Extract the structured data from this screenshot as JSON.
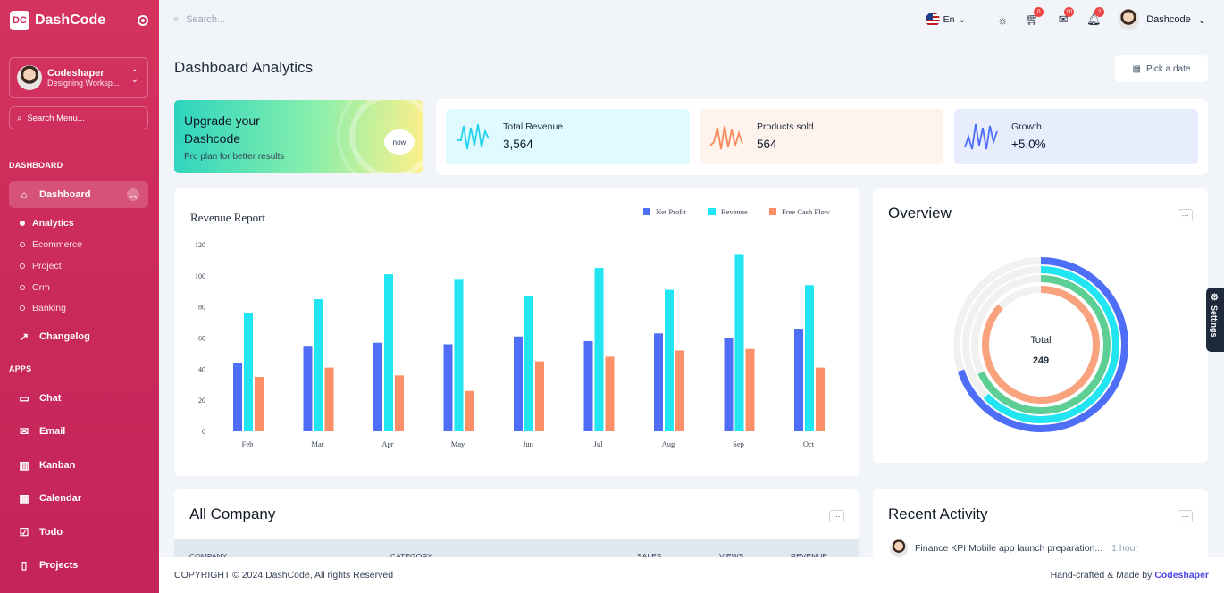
{
  "brand": {
    "logo_text": "DC",
    "name": "DashCode"
  },
  "sidebar": {
    "user": {
      "name": "Codeshaper",
      "workspace": "Designing Worksp..."
    },
    "search_label": "Search Menu...",
    "section_dashboard": "DASHBOARD",
    "dashboard_label": "Dashboard",
    "sub_items": [
      "Analytics",
      "Ecommerce",
      "Project",
      "Crm",
      "Banking"
    ],
    "changelog_label": "Changelog",
    "section_apps": "APPS",
    "apps": [
      {
        "label": "Chat",
        "icon": "chat-icon"
      },
      {
        "label": "Email",
        "icon": "email-icon"
      },
      {
        "label": "Kanban",
        "icon": "kanban-icon"
      },
      {
        "label": "Calendar",
        "icon": "calendar-icon"
      },
      {
        "label": "Todo",
        "icon": "todo-icon"
      },
      {
        "label": "Projects",
        "icon": "projects-icon"
      }
    ]
  },
  "topbar": {
    "search_placeholder": "Search...",
    "language": "En",
    "cart_badge": "0",
    "mail_badge": "10",
    "notify_badge": "2",
    "user_name": "Dashcode"
  },
  "page": {
    "title": "Dashboard Analytics",
    "date_button": "Pick a date"
  },
  "upgrade": {
    "heading": "Upgrade your Dashcode",
    "sub": "Pro plan for better results",
    "pill": "now"
  },
  "stats": [
    {
      "label": "Total Revenue",
      "value": "3,564",
      "color": "#22d3ee",
      "bg": "#e0fbff"
    },
    {
      "label": "Products sold",
      "value": "564",
      "color": "#fb8a5c",
      "bg": "#fff3ee"
    },
    {
      "label": "Growth",
      "value": "+5.0%",
      "color": "#4f6ef7",
      "bg": "#e8edfd"
    }
  ],
  "revenue_report": {
    "title": "Revenue Report"
  },
  "chart_data": {
    "type": "bar",
    "categories": [
      "Feb",
      "Mar",
      "Apr",
      "May",
      "Jun",
      "Jul",
      "Aug",
      "Sep",
      "Oct"
    ],
    "series": [
      {
        "name": "Net Profit",
        "color": "#4f6ef7",
        "values": [
          44,
          55,
          57,
          56,
          61,
          58,
          63,
          60,
          66
        ]
      },
      {
        "name": "Revenue",
        "color": "#22e5f2",
        "values": [
          76,
          85,
          101,
          98,
          87,
          105,
          91,
          114,
          94
        ]
      },
      {
        "name": "Free Cash Flow",
        "color": "#fb8f67",
        "values": [
          35,
          41,
          36,
          26,
          45,
          48,
          52,
          53,
          41
        ]
      }
    ],
    "yticks": [
      0,
      20,
      40,
      60,
      80,
      100,
      120
    ],
    "ylim": [
      0,
      120
    ],
    "legend_position": "top-right"
  },
  "overview": {
    "title": "Overview",
    "center_label": "Total",
    "center_value": "249",
    "rings": [
      {
        "color": "#4f6ef7",
        "fraction": 0.7
      },
      {
        "color": "#22e5f2",
        "fraction": 0.63
      },
      {
        "color": "#5dcf95",
        "fraction": 0.68
      },
      {
        "color": "#f9a27e",
        "fraction": 0.87
      }
    ]
  },
  "company": {
    "title": "All Company",
    "columns": [
      "COMPANY",
      "CATEGORY",
      "SALES",
      "VIEWS",
      "REVENUE"
    ]
  },
  "activity": {
    "title": "Recent Activity",
    "item_text": "Finance KPI Mobile app launch preparation...",
    "item_time": "1 hour"
  },
  "footer": {
    "copyright": "COPYRIGHT © 2024 DashCode, All rights Reserved",
    "made_prefix": "Hand-crafted & Made by",
    "made_brand": "Codeshaper"
  },
  "settings_tab": "Settings",
  "more_label": "···"
}
